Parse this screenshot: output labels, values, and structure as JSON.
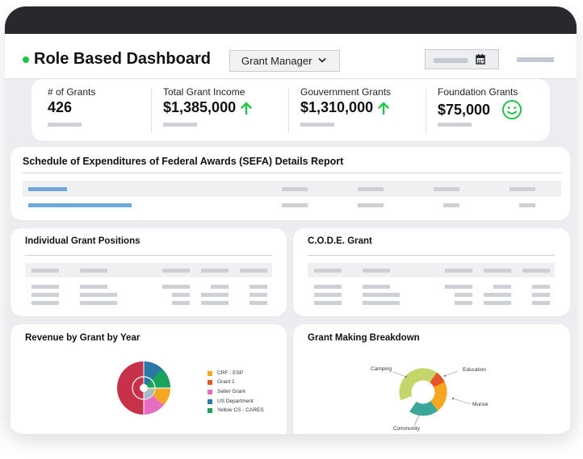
{
  "header": {
    "title": "Role Based Dashboard",
    "role_select": {
      "selected": "Grant Manager"
    }
  },
  "kpis": [
    {
      "label": "# of Grants",
      "value": "426",
      "indicator": ""
    },
    {
      "label": "Total Grant Income",
      "value": "$1,385,000",
      "indicator": "up-arrow-icon"
    },
    {
      "label": "Gouvernment Grants",
      "value": "$1,310,000",
      "indicator": "up-arrow-icon"
    },
    {
      "label": "Foundation Grants",
      "value": "$75,000",
      "indicator": "smiley-icon"
    }
  ],
  "colors": {
    "accent_green": "#1ec447",
    "link_blue": "#6fa8d8"
  },
  "sefa": {
    "title": "Schedule of Expenditures of Federal Awards (SEFA) Details Report"
  },
  "individual_positions": {
    "title": "Individual Grant Positions"
  },
  "code_grant": {
    "title": "C.O.D.E. Grant"
  },
  "revenue_by_year": {
    "title": "Revenue by Grant by Year",
    "legend": [
      {
        "label": "CRF - ESP",
        "color": "#f5a623"
      },
      {
        "label": "Grant 1",
        "color": "#e8542a"
      },
      {
        "label": "Seller Grant",
        "color": "#e86cc0"
      },
      {
        "label": "US Department",
        "color": "#2a78a8"
      },
      {
        "label": "Yellow CS - CARES",
        "color": "#1aa45a"
      }
    ]
  },
  "grant_making": {
    "title": "Grant Making Breakdown",
    "segments": [
      {
        "label": "Camping",
        "color": "#c2d66a"
      },
      {
        "label": "Education",
        "color": "#e8542a"
      },
      {
        "label": "Murice",
        "color": "#f5a623"
      },
      {
        "label": "Community",
        "color": "#3aa79a"
      }
    ]
  }
}
